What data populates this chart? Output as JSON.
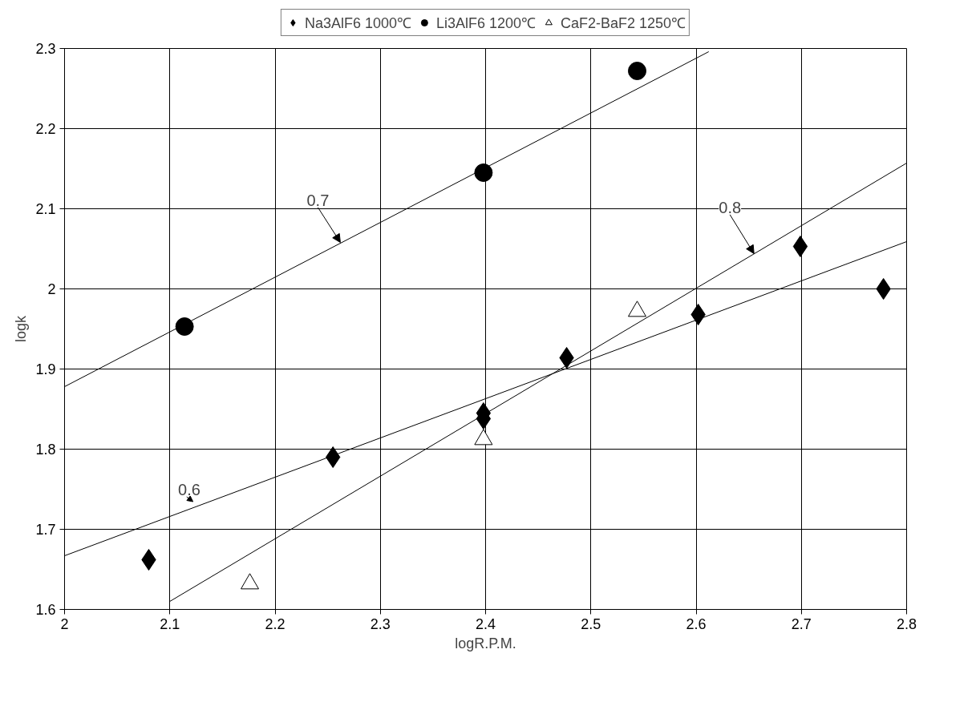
{
  "chart_data": {
    "type": "scatter",
    "xlabel": "logR.P.M.",
    "ylabel": "logk",
    "xlim": [
      2,
      2.8
    ],
    "xticks": [
      2,
      2.1,
      2.2,
      2.3,
      2.4,
      2.5,
      2.6,
      2.7,
      2.8
    ],
    "ylim": [
      1.6,
      2.3
    ],
    "yticks": [
      1.6,
      1.7,
      1.8,
      1.9,
      2,
      2.1,
      2.2,
      2.3
    ],
    "grid": true,
    "legend": "top",
    "series": [
      {
        "name": "Na3AlF6 1000℃",
        "color": "#000000",
        "marker": "diamond",
        "x": [
          2.08,
          2.255,
          2.398,
          2.398,
          2.477,
          2.602,
          2.699,
          2.778
        ],
        "values": [
          1.662,
          1.79,
          1.838,
          1.845,
          1.914,
          1.968,
          2.053,
          2.0
        ]
      },
      {
        "name": "Li3AlF6 1200℃",
        "color": "#000000",
        "marker": "circle",
        "x": [
          2.114,
          2.398,
          2.544
        ],
        "values": [
          1.953,
          2.145,
          2.272
        ]
      },
      {
        "name": "CaF2-BaF2 1250℃",
        "color": "#ffffff",
        "marker": "triangle",
        "x": [
          2.176,
          2.398,
          2.544
        ],
        "values": [
          1.632,
          1.812,
          1.972
        ]
      },
      {
        "type": "line",
        "color": "#000000",
        "x": [
          2.0,
          2.612
        ],
        "values": [
          1.878,
          2.296
        ]
      },
      {
        "type": "line",
        "color": "#000000",
        "x": [
          2.0,
          2.8
        ],
        "values": [
          1.667,
          2.059
        ]
      },
      {
        "type": "line",
        "color": "#000000",
        "x": [
          2.1,
          2.8
        ],
        "values": [
          1.61,
          2.157
        ]
      }
    ],
    "annotations": [
      {
        "text": "0.7",
        "x": 2.262,
        "y": 2.058
      },
      {
        "text": "0.8",
        "x": 2.655,
        "y": 2.044
      },
      "0.6"
    ]
  }
}
